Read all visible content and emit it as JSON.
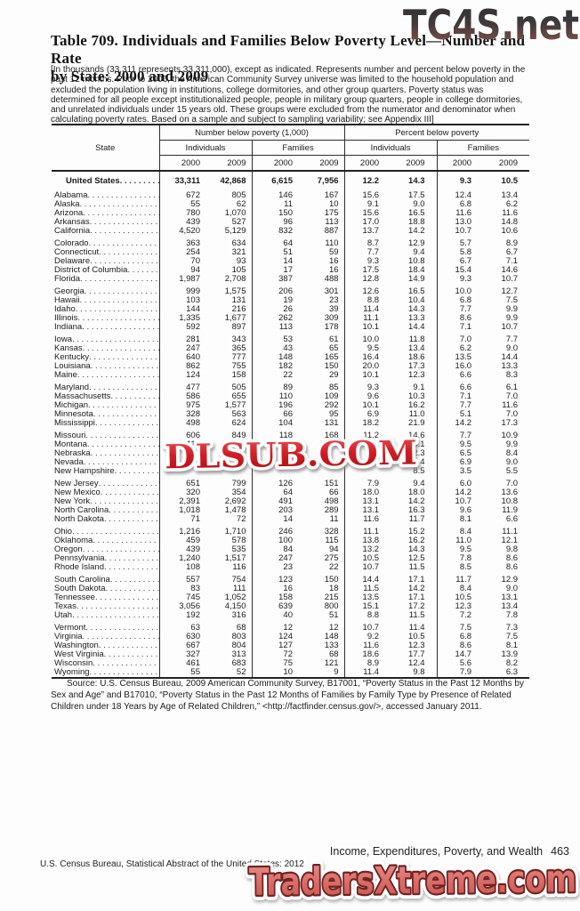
{
  "watermarks": {
    "top_text": "TC4S.net",
    "middle_text": "DLSUB.COM",
    "bottom_text": "TradersXtreme.com",
    "top_color_dark": "#2f2f31",
    "top_color_rust": "#9c6b66",
    "middle_red": "#c01219",
    "bottom_salmon": "#d96b66",
    "bottom_outline": "#702423"
  },
  "title": {
    "line1": "Table 709. Individuals and Families Below Poverty Level—Number and Rate",
    "line2": "by State: 2000 and 2009"
  },
  "intro_note": "[In thousands (33,311 represents 33,311,000), except as indicated. Represents number and percent below poverty in the past 12 months. Prior to 2006, the American Community Survey universe was limited to the household population and excluded the population living in institutions, college dormitories, and other group quarters. Poverty status was determined for all people except institutionalized people, people in military group quarters, people in college dormitories, and unrelated individuals under 15 years old. These groups were excluded from the numerator and denominator when calculating poverty rates. Based on a sample and subject to sampling variability; see Appendix III]",
  "table": {
    "state_header": "State",
    "group_headers": [
      "Number below poverty (1,000)",
      "Percent below poverty"
    ],
    "sub_headers": [
      "Individuals",
      "Families",
      "Individuals",
      "Families"
    ],
    "years": [
      "2000",
      "2009",
      "2000",
      "2009",
      "2000",
      "2009",
      "2000",
      "2009"
    ],
    "us_row": {
      "label": "United States",
      "values": [
        "33,311",
        "42,868",
        "6,615",
        "7,956",
        "12.2",
        "14.3",
        "9.3",
        "10.5"
      ]
    },
    "groups": [
      [
        {
          "state": "Alabama",
          "values": [
            "672",
            "805",
            "146",
            "167",
            "15.6",
            "17.5",
            "12.4",
            "13.4"
          ]
        },
        {
          "state": "Alaska",
          "values": [
            "55",
            "62",
            "11",
            "10",
            "9.1",
            "9.0",
            "6.8",
            "6.2"
          ]
        },
        {
          "state": "Arizona",
          "values": [
            "780",
            "1,070",
            "150",
            "175",
            "15.6",
            "16.5",
            "11.6",
            "11.6"
          ]
        },
        {
          "state": "Arkansas",
          "values": [
            "439",
            "527",
            "96",
            "113",
            "17.0",
            "18.8",
            "13.0",
            "14.8"
          ]
        },
        {
          "state": "California",
          "values": [
            "4,520",
            "5,129",
            "832",
            "887",
            "13.7",
            "14.2",
            "10.7",
            "10.6"
          ]
        }
      ],
      [
        {
          "state": "Colorado",
          "values": [
            "363",
            "634",
            "64",
            "110",
            "8.7",
            "12.9",
            "5.7",
            "8.9"
          ]
        },
        {
          "state": "Connecticut",
          "values": [
            "254",
            "321",
            "51",
            "59",
            "7.7",
            "9.4",
            "5.8",
            "6.7"
          ]
        },
        {
          "state": "Delaware",
          "values": [
            "70",
            "93",
            "14",
            "16",
            "9.3",
            "10.8",
            "6.7",
            "7.1"
          ]
        },
        {
          "state": "District of Columbia",
          "values": [
            "94",
            "105",
            "17",
            "16",
            "17.5",
            "18.4",
            "15.4",
            "14.6"
          ]
        },
        {
          "state": "Florida",
          "values": [
            "1,987",
            "2,708",
            "387",
            "488",
            "12.8",
            "14.9",
            "9.3",
            "10.7"
          ]
        }
      ],
      [
        {
          "state": "Georgia",
          "values": [
            "999",
            "1,575",
            "206",
            "301",
            "12.6",
            "16.5",
            "10.0",
            "12.7"
          ]
        },
        {
          "state": "Hawaii",
          "values": [
            "103",
            "131",
            "19",
            "23",
            "8.8",
            "10.4",
            "6.8",
            "7.5"
          ]
        },
        {
          "state": "Idaho",
          "values": [
            "144",
            "216",
            "26",
            "39",
            "11.4",
            "14.3",
            "7.7",
            "9.9"
          ]
        },
        {
          "state": "Illinois",
          "values": [
            "1,335",
            "1,677",
            "262",
            "309",
            "11.1",
            "13.3",
            "8.6",
            "9.9"
          ]
        },
        {
          "state": "Indiana",
          "values": [
            "592",
            "897",
            "113",
            "178",
            "10.1",
            "14.4",
            "7.1",
            "10.7"
          ]
        }
      ],
      [
        {
          "state": "Iowa",
          "values": [
            "281",
            "343",
            "53",
            "61",
            "10.0",
            "11.8",
            "7.0",
            "7.7"
          ]
        },
        {
          "state": "Kansas",
          "values": [
            "247",
            "365",
            "43",
            "65",
            "9.5",
            "13.4",
            "6.2",
            "9.0"
          ]
        },
        {
          "state": "Kentucky",
          "values": [
            "640",
            "777",
            "148",
            "165",
            "16.4",
            "18.6",
            "13.5",
            "14.4"
          ]
        },
        {
          "state": "Louisiana",
          "values": [
            "862",
            "755",
            "182",
            "150",
            "20.0",
            "17.3",
            "16.0",
            "13.3"
          ]
        },
        {
          "state": "Maine",
          "values": [
            "124",
            "158",
            "22",
            "29",
            "10.1",
            "12.3",
            "6.6",
            "8.3"
          ]
        }
      ],
      [
        {
          "state": "Maryland",
          "values": [
            "477",
            "505",
            "89",
            "85",
            "9.3",
            "9.1",
            "6.6",
            "6.1"
          ]
        },
        {
          "state": "Massachusetts",
          "values": [
            "586",
            "655",
            "110",
            "109",
            "9.6",
            "10.3",
            "7.1",
            "7.0"
          ]
        },
        {
          "state": "Michigan",
          "values": [
            "975",
            "1,577",
            "196",
            "292",
            "10.1",
            "16.2",
            "7.7",
            "11.6"
          ]
        },
        {
          "state": "Minnesota",
          "values": [
            "328",
            "563",
            "66",
            "95",
            "6.9",
            "11.0",
            "5.1",
            "7.0"
          ]
        },
        {
          "state": "Mississippi",
          "values": [
            "498",
            "624",
            "104",
            "131",
            "18.2",
            "21.9",
            "14.2",
            "17.3"
          ]
        }
      ],
      [
        {
          "state": "Missouri",
          "values": [
            "606",
            "849",
            "118",
            "168",
            "11.2",
            "14.6",
            "7.7",
            "10.9"
          ]
        },
        {
          "state": "Montana",
          "values": [
            "117",
            "143",
            "23",
            "23",
            "13.4",
            "15.1",
            "9.5",
            "9.9"
          ]
        },
        {
          "state": "Nebraska",
          "values": [
            "",
            "",
            "",
            "",
            "",
            "12.3",
            "6.5",
            "8.4"
          ]
        },
        {
          "state": "Nevada",
          "values": [
            "",
            "",
            "",
            "",
            "",
            "12.4",
            "6.9",
            "9.0"
          ]
        },
        {
          "state": "New Hampshire",
          "values": [
            "",
            "",
            "",
            "",
            "",
            "8.5",
            "3.5",
            "5.5"
          ]
        }
      ],
      [
        {
          "state": "New Jersey",
          "values": [
            "651",
            "799",
            "126",
            "151",
            "7.9",
            "9.4",
            "6.0",
            "7.0"
          ]
        },
        {
          "state": "New Mexico",
          "values": [
            "320",
            "354",
            "64",
            "66",
            "18.0",
            "18.0",
            "14.2",
            "13.6"
          ]
        },
        {
          "state": "New York",
          "values": [
            "2,391",
            "2,692",
            "491",
            "498",
            "13.1",
            "14.2",
            "10.7",
            "10.8"
          ]
        },
        {
          "state": "North Carolina",
          "values": [
            "1,018",
            "1,478",
            "203",
            "289",
            "13.1",
            "16.3",
            "9.6",
            "11.9"
          ]
        },
        {
          "state": "North Dakota",
          "values": [
            "71",
            "72",
            "14",
            "11",
            "11.6",
            "11.7",
            "8.1",
            "6.6"
          ]
        }
      ],
      [
        {
          "state": "Ohio",
          "values": [
            "1,216",
            "1,710",
            "246",
            "328",
            "11.1",
            "15.2",
            "8.4",
            "11.1"
          ]
        },
        {
          "state": "Oklahoma",
          "values": [
            "459",
            "578",
            "100",
            "115",
            "13.8",
            "16.2",
            "11.0",
            "12.1"
          ]
        },
        {
          "state": "Oregon",
          "values": [
            "439",
            "535",
            "84",
            "94",
            "13.2",
            "14.3",
            "9.5",
            "9.8"
          ]
        },
        {
          "state": "Pennsylvania",
          "values": [
            "1,240",
            "1,517",
            "247",
            "275",
            "10.5",
            "12.5",
            "7.8",
            "8.6"
          ]
        },
        {
          "state": "Rhode Island",
          "values": [
            "108",
            "116",
            "23",
            "22",
            "10.7",
            "11.5",
            "8.5",
            "8.6"
          ]
        }
      ],
      [
        {
          "state": "South Carolina",
          "values": [
            "557",
            "754",
            "123",
            "150",
            "14.4",
            "17.1",
            "11.7",
            "12.9"
          ]
        },
        {
          "state": "South Dakota",
          "values": [
            "83",
            "111",
            "16",
            "18",
            "11.5",
            "14.2",
            "8.4",
            "9.0"
          ]
        },
        {
          "state": "Tennessee",
          "values": [
            "745",
            "1,052",
            "158",
            "215",
            "13.5",
            "17.1",
            "10.5",
            "13.1"
          ]
        },
        {
          "state": "Texas",
          "values": [
            "3,056",
            "4,150",
            "639",
            "800",
            "15.1",
            "17.2",
            "12.3",
            "13.4"
          ]
        },
        {
          "state": "Utah",
          "values": [
            "192",
            "316",
            "40",
            "51",
            "8.8",
            "11.5",
            "7.2",
            "7.8"
          ]
        }
      ],
      [
        {
          "state": "Vermont",
          "values": [
            "63",
            "68",
            "12",
            "12",
            "10.7",
            "11.4",
            "7.5",
            "7.3"
          ]
        },
        {
          "state": "Virginia",
          "values": [
            "630",
            "803",
            "124",
            "148",
            "9.2",
            "10.5",
            "6.8",
            "7.5"
          ]
        },
        {
          "state": "Washington",
          "values": [
            "667",
            "804",
            "127",
            "133",
            "11.6",
            "12.3",
            "8.6",
            "8.1"
          ]
        },
        {
          "state": "West Virginia",
          "values": [
            "327",
            "313",
            "72",
            "68",
            "18.6",
            "17.7",
            "14.7",
            "13.9"
          ]
        },
        {
          "state": "Wisconsin",
          "values": [
            "461",
            "683",
            "75",
            "121",
            "8.9",
            "12.4",
            "5.6",
            "8.2"
          ]
        },
        {
          "state": "Wyoming",
          "values": [
            "55",
            "52",
            "10",
            "9",
            "11.4",
            "9.8",
            "7.9",
            "6.3"
          ]
        }
      ]
    ]
  },
  "source_note": "Source: U.S. Census Bureau, 2009 American Community Survey, B17001, “Poverty Status in the Past 12 Months by Sex and Age” and B17010, “Poverty Status in the Past 12 Months of Families by Family Type by Presence of Related Children under 18 Years by Age of Related Children,” <http://factfinder.census.gov/>, accessed January 2011.",
  "footer": {
    "section_title": "Income, Expenditures, Poverty, and Wealth",
    "page_number": "463",
    "credit_line": "U.S. Census Bureau, Statistical Abstract of the United States: 2012"
  }
}
